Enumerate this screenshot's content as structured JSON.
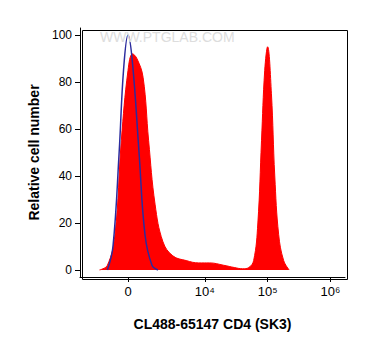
{
  "chart_data": {
    "type": "line",
    "x_label": "CL488-65147 CD4 (SK3)",
    "y_label": "Relative cell number",
    "annotations": [
      {
        "text": "WWW.PTGLAB.COM"
      }
    ],
    "xlim": [
      -3400,
      1700000
    ],
    "xticks": [
      0,
      {
        "value": 10000,
        "label": "10⁴"
      },
      {
        "value": 100000,
        "label": "10⁵"
      },
      {
        "value": 1000000,
        "label": "10⁶"
      }
    ],
    "ylim": [
      -3,
      103
    ],
    "yticks": [
      0,
      20,
      40,
      60,
      80,
      100
    ],
    "grid": false,
    "series": [
      {
        "type": "area",
        "color": "#ff0000",
        "x": [
          -1500,
          -1000,
          -600,
          -300,
          0,
          200,
          400,
          700,
          1000,
          1400,
          2000,
          3000,
          5000,
          8000,
          12000,
          20000,
          30000,
          40000,
          50000,
          60000,
          70000,
          80000,
          90000,
          100000,
          115000,
          130000,
          150000,
          180000,
          220000
        ],
        "values": [
          0,
          2,
          15,
          55,
          85,
          92,
          90,
          82,
          55,
          28,
          12,
          6,
          4,
          3,
          3,
          2,
          1,
          0.5,
          1,
          4,
          20,
          55,
          85,
          95,
          75,
          40,
          15,
          4,
          0
        ]
      },
      {
        "type": "line",
        "color": "#2b2b9e",
        "x": [
          -1000,
          -700,
          -400,
          -200,
          0,
          200,
          500,
          800,
          1200,
          1600
        ],
        "values": [
          0,
          10,
          50,
          85,
          100,
          88,
          50,
          15,
          2,
          0
        ]
      }
    ]
  }
}
